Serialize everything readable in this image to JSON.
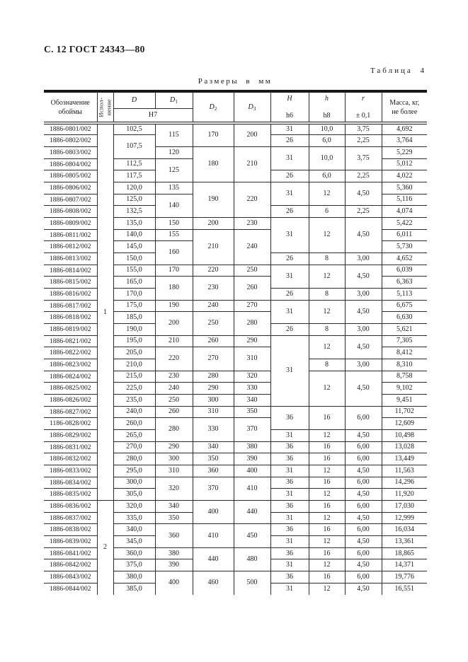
{
  "page": {
    "header": "С. 12 ГОСТ 24343—80",
    "table_label": "Таблица 4",
    "units_label": "Размеры в мм"
  },
  "table": {
    "column_keys": [
      "designation",
      "ispolnenie",
      "D",
      "D1",
      "D2",
      "D3",
      "H",
      "h",
      "r",
      "mass"
    ],
    "header": {
      "designation_line1": "Обозначение",
      "designation_line2": "обоймы",
      "ispolnenie_line1": "Испол-",
      "ispolnenie_line2": "нение",
      "d": "D",
      "d1_base": "D",
      "d1_sub": "1",
      "d_tol": "Н7",
      "d2_base": "D",
      "d2_sub": "2",
      "d3_base": "D",
      "d3_sub": "3",
      "H_base": "H",
      "H_tol": "h6",
      "h_base": "h",
      "h_tol": "h8",
      "r_base": "r",
      "r_tol": "± 0,1",
      "mass_line1": "Масса, кг,",
      "mass_line2": "не более"
    },
    "rows": [
      [
        {
          "v": "1886-0801/002"
        },
        {
          "v": "1",
          "rs": 32
        },
        {
          "v": "102,5"
        },
        {
          "v": "115",
          "rs": 2
        },
        {
          "v": "170",
          "rs": 2
        },
        {
          "v": "200",
          "rs": 2
        },
        {
          "v": "31"
        },
        {
          "v": "10,0"
        },
        {
          "v": "3,75"
        },
        {
          "v": "4,692"
        }
      ],
      [
        {
          "v": "1886-0802/002"
        },
        {
          "v": "107,5",
          "rs": 2
        },
        {
          "v": "26"
        },
        {
          "v": "6,0"
        },
        {
          "v": "2,25"
        },
        {
          "v": "3,764"
        }
      ],
      [
        {
          "v": "1886-0803/002"
        },
        {
          "v": "120"
        },
        {
          "v": "180",
          "rs": 3
        },
        {
          "v": "210",
          "rs": 3
        },
        {
          "v": "31",
          "rs": 2
        },
        {
          "v": "10,0",
          "rs": 2
        },
        {
          "v": "3,75",
          "rs": 2
        },
        {
          "v": "5,229"
        }
      ],
      [
        {
          "v": "1886-0804/002"
        },
        {
          "v": "112,5"
        },
        {
          "v": "125",
          "rs": 2
        },
        {
          "v": "5,012"
        }
      ],
      [
        {
          "v": "1886-0805/002"
        },
        {
          "v": "117,5"
        },
        {
          "v": "26"
        },
        {
          "v": "6,0"
        },
        {
          "v": "2,25"
        },
        {
          "v": "4,022"
        }
      ],
      [
        {
          "v": "1886-0806/002"
        },
        {
          "v": "120,0"
        },
        {
          "v": "135"
        },
        {
          "v": "190",
          "rs": 3
        },
        {
          "v": "220",
          "rs": 3
        },
        {
          "v": "31",
          "rs": 2
        },
        {
          "v": "12",
          "rs": 2
        },
        {
          "v": "4,50",
          "rs": 2
        },
        {
          "v": "5,360"
        }
      ],
      [
        {
          "v": "1886-0807/002"
        },
        {
          "v": "125,0"
        },
        {
          "v": "140",
          "rs": 2
        },
        {
          "v": "5,116"
        }
      ],
      [
        {
          "v": "1886-0808/002"
        },
        {
          "v": "132,5"
        },
        {
          "v": "26"
        },
        {
          "v": "6"
        },
        {
          "v": "2,25"
        },
        {
          "v": "4,074"
        }
      ],
      [
        {
          "v": "1886-0809/002"
        },
        {
          "v": "135,0"
        },
        {
          "v": "150"
        },
        {
          "v": "200"
        },
        {
          "v": "230"
        },
        {
          "v": "31",
          "rs": 3
        },
        {
          "v": "12",
          "rs": 3
        },
        {
          "v": "4,50",
          "rs": 3
        },
        {
          "v": "5,422"
        }
      ],
      [
        {
          "v": "1886-0811/002"
        },
        {
          "v": "140,0"
        },
        {
          "v": "155"
        },
        {
          "v": "210",
          "rs": 3
        },
        {
          "v": "240",
          "rs": 3
        },
        {
          "v": "6,011"
        }
      ],
      [
        {
          "v": "1886-0812/002"
        },
        {
          "v": "145,0"
        },
        {
          "v": "160",
          "rs": 2
        },
        {
          "v": "5,730"
        }
      ],
      [
        {
          "v": "1886-0813/002"
        },
        {
          "v": "150,0"
        },
        {
          "v": "26"
        },
        {
          "v": "8"
        },
        {
          "v": "3,00"
        },
        {
          "v": "4,652"
        }
      ],
      [
        {
          "v": "1886-0814/002"
        },
        {
          "v": "155,0"
        },
        {
          "v": "170"
        },
        {
          "v": "220"
        },
        {
          "v": "250"
        },
        {
          "v": "31",
          "rs": 2
        },
        {
          "v": "12",
          "rs": 2
        },
        {
          "v": "4,50",
          "rs": 2
        },
        {
          "v": "6,039"
        }
      ],
      [
        {
          "v": "1886-0815/002"
        },
        {
          "v": "165,0"
        },
        {
          "v": "180",
          "rs": 2
        },
        {
          "v": "230",
          "rs": 2
        },
        {
          "v": "260",
          "rs": 2
        },
        {
          "v": "6,363"
        }
      ],
      [
        {
          "v": "1886-0816/002"
        },
        {
          "v": "170,0"
        },
        {
          "v": "26"
        },
        {
          "v": "8"
        },
        {
          "v": "3,00"
        },
        {
          "v": "5,113"
        }
      ],
      [
        {
          "v": "1886-0817/002"
        },
        {
          "v": "175,0"
        },
        {
          "v": "190"
        },
        {
          "v": "240"
        },
        {
          "v": "270"
        },
        {
          "v": "31",
          "rs": 2
        },
        {
          "v": "12",
          "rs": 2
        },
        {
          "v": "4,50",
          "rs": 2
        },
        {
          "v": "6,675"
        }
      ],
      [
        {
          "v": "1886-0818/002"
        },
        {
          "v": "185,0"
        },
        {
          "v": "200",
          "rs": 2
        },
        {
          "v": "250",
          "rs": 2
        },
        {
          "v": "280",
          "rs": 2
        },
        {
          "v": "6,630"
        }
      ],
      [
        {
          "v": "1886-0819/002"
        },
        {
          "v": "190,0"
        },
        {
          "v": "26"
        },
        {
          "v": "8"
        },
        {
          "v": "3,00"
        },
        {
          "v": "5,621"
        }
      ],
      [
        {
          "v": "1886-0821/002"
        },
        {
          "v": "195,0"
        },
        {
          "v": "210"
        },
        {
          "v": "260"
        },
        {
          "v": "290"
        },
        {
          "v": "31",
          "rs": 6
        },
        {
          "v": "12",
          "rs": 2
        },
        {
          "v": "4,50",
          "rs": 2
        },
        {
          "v": "7,305"
        }
      ],
      [
        {
          "v": "1886-0822/002"
        },
        {
          "v": "205,0"
        },
        {
          "v": "220",
          "rs": 2
        },
        {
          "v": "270",
          "rs": 2
        },
        {
          "v": "310",
          "rs": 2
        },
        {
          "v": "8,412"
        }
      ],
      [
        {
          "v": "1886-0823/002"
        },
        {
          "v": "210,0"
        },
        {
          "v": "8"
        },
        {
          "v": "3,00"
        },
        {
          "v": "8,310"
        }
      ],
      [
        {
          "v": "1886-0824/002"
        },
        {
          "v": "215,0"
        },
        {
          "v": "230"
        },
        {
          "v": "280"
        },
        {
          "v": "320"
        },
        {
          "v": "12",
          "rs": 3
        },
        {
          "v": "4,50",
          "rs": 3
        },
        {
          "v": "8,758"
        }
      ],
      [
        {
          "v": "1886-0825/002"
        },
        {
          "v": "225,0"
        },
        {
          "v": "240"
        },
        {
          "v": "290"
        },
        {
          "v": "330"
        },
        {
          "v": "9,102"
        }
      ],
      [
        {
          "v": "1886-0826/002"
        },
        {
          "v": "235,0"
        },
        {
          "v": "250"
        },
        {
          "v": "300"
        },
        {
          "v": "340"
        },
        {
          "v": "9,451"
        }
      ],
      [
        {
          "v": "1886-0827/002"
        },
        {
          "v": "240,0"
        },
        {
          "v": "260"
        },
        {
          "v": "310"
        },
        {
          "v": "350"
        },
        {
          "v": "36",
          "rs": 2
        },
        {
          "v": "16",
          "rs": 2
        },
        {
          "v": "6,00",
          "rs": 2
        },
        {
          "v": "11,702"
        }
      ],
      [
        {
          "v": "1186-0828/002"
        },
        {
          "v": "260,0"
        },
        {
          "v": "280",
          "rs": 2
        },
        {
          "v": "330",
          "rs": 2
        },
        {
          "v": "370",
          "rs": 2
        },
        {
          "v": "12,609"
        }
      ],
      [
        {
          "v": "1886-0829/002"
        },
        {
          "v": "265,0"
        },
        {
          "v": "31"
        },
        {
          "v": "12"
        },
        {
          "v": "4,50"
        },
        {
          "v": "10,498"
        }
      ],
      [
        {
          "v": "1886-0831/002"
        },
        {
          "v": "270,0"
        },
        {
          "v": "290"
        },
        {
          "v": "340"
        },
        {
          "v": "380"
        },
        {
          "v": "36"
        },
        {
          "v": "16"
        },
        {
          "v": "6,00"
        },
        {
          "v": "13,028"
        }
      ],
      [
        {
          "v": "1886-0832/002"
        },
        {
          "v": "280,0"
        },
        {
          "v": "300"
        },
        {
          "v": "350"
        },
        {
          "v": "390"
        },
        {
          "v": "36"
        },
        {
          "v": "16"
        },
        {
          "v": "6,00"
        },
        {
          "v": "13,449"
        }
      ],
      [
        {
          "v": "1886-0833/002"
        },
        {
          "v": "295,0"
        },
        {
          "v": "310"
        },
        {
          "v": "360"
        },
        {
          "v": "400"
        },
        {
          "v": "31"
        },
        {
          "v": "12"
        },
        {
          "v": "4,50"
        },
        {
          "v": "11,563"
        }
      ],
      [
        {
          "v": "1886-0834/002"
        },
        {
          "v": "300,0"
        },
        {
          "v": "320",
          "rs": 2
        },
        {
          "v": "370",
          "rs": 2
        },
        {
          "v": "410",
          "rs": 2
        },
        {
          "v": "36"
        },
        {
          "v": "16"
        },
        {
          "v": "6,00"
        },
        {
          "v": "14,296"
        }
      ],
      [
        {
          "v": "1886-0835/002"
        },
        {
          "v": "305,0"
        },
        {
          "v": "31"
        },
        {
          "v": "12"
        },
        {
          "v": "4,50"
        },
        {
          "v": "11,920"
        }
      ],
      [
        {
          "v": "1886-0836/002"
        },
        {
          "v": "2",
          "rs": 8
        },
        {
          "v": "320,0"
        },
        {
          "v": "340"
        },
        {
          "v": "400",
          "rs": 2
        },
        {
          "v": "440",
          "rs": 2
        },
        {
          "v": "36"
        },
        {
          "v": "16"
        },
        {
          "v": "6,00"
        },
        {
          "v": "17,030"
        }
      ],
      [
        {
          "v": "1886-0837/002"
        },
        {
          "v": "335,0"
        },
        {
          "v": "350"
        },
        {
          "v": "31"
        },
        {
          "v": "12"
        },
        {
          "v": "4,50"
        },
        {
          "v": "12,999"
        }
      ],
      [
        {
          "v": "1886-0838/002"
        },
        {
          "v": "340,0"
        },
        {
          "v": "360",
          "rs": 2
        },
        {
          "v": "410",
          "rs": 2
        },
        {
          "v": "450",
          "rs": 2
        },
        {
          "v": "36"
        },
        {
          "v": "16"
        },
        {
          "v": "6,00"
        },
        {
          "v": "16,034"
        }
      ],
      [
        {
          "v": "1886-0839/002"
        },
        {
          "v": "345,0"
        },
        {
          "v": "31"
        },
        {
          "v": "12"
        },
        {
          "v": "4,50"
        },
        {
          "v": "13,361"
        }
      ],
      [
        {
          "v": "1886-0841/002"
        },
        {
          "v": "360,0"
        },
        {
          "v": "380"
        },
        {
          "v": "440",
          "rs": 2
        },
        {
          "v": "480",
          "rs": 2
        },
        {
          "v": "36"
        },
        {
          "v": "16"
        },
        {
          "v": "6,00"
        },
        {
          "v": "18,865"
        }
      ],
      [
        {
          "v": "1886-0842/002"
        },
        {
          "v": "375,0"
        },
        {
          "v": "390"
        },
        {
          "v": "31"
        },
        {
          "v": "12"
        },
        {
          "v": "4,50"
        },
        {
          "v": "14,371"
        }
      ],
      [
        {
          "v": "1886-0843/002"
        },
        {
          "v": "380,0"
        },
        {
          "v": "400",
          "rs": 2
        },
        {
          "v": "460",
          "rs": 2
        },
        {
          "v": "500",
          "rs": 2
        },
        {
          "v": "36"
        },
        {
          "v": "16"
        },
        {
          "v": "6,00"
        },
        {
          "v": "19,776"
        }
      ],
      [
        {
          "v": "1886-0844/002"
        },
        {
          "v": "385,0"
        },
        {
          "v": "31"
        },
        {
          "v": "12"
        },
        {
          "v": "4,50"
        },
        {
          "v": "16,551"
        }
      ]
    ]
  }
}
